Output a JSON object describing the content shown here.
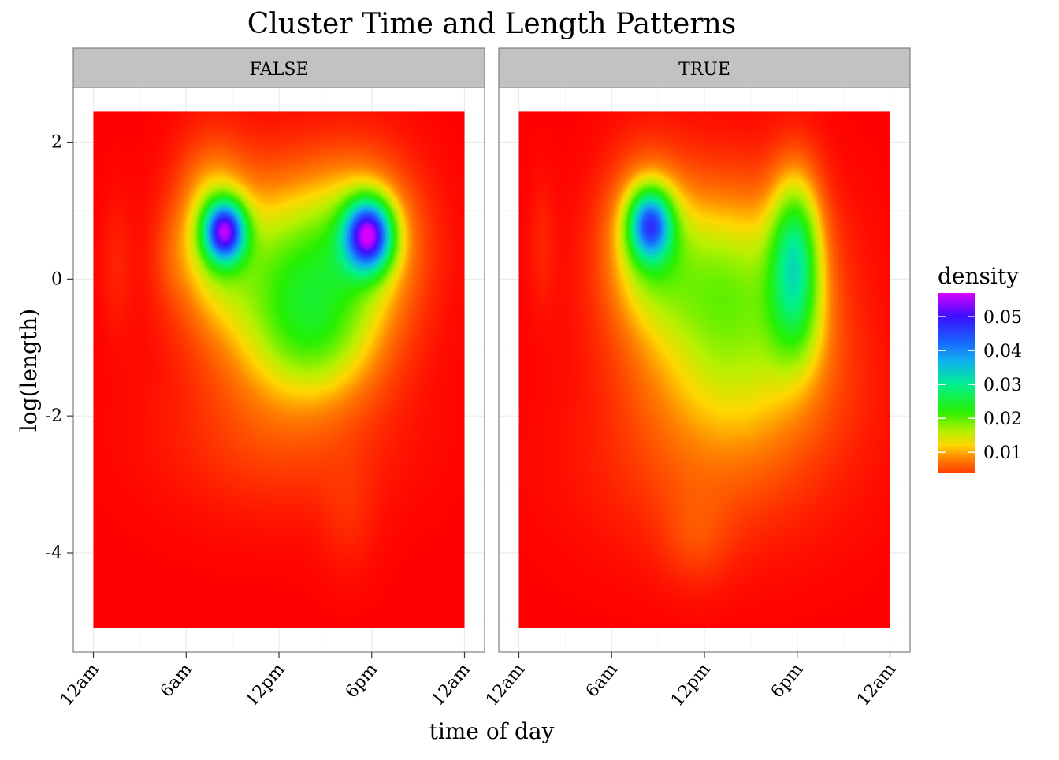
{
  "chart_data": {
    "type": "heatmap",
    "title": "Cluster Time and Length Patterns",
    "xlabel": "time of day",
    "ylabel": "log(length)",
    "facets": [
      "FALSE",
      "TRUE"
    ],
    "x_ticks": [
      {
        "value": 0,
        "label": "12am"
      },
      {
        "value": 6,
        "label": "6am"
      },
      {
        "value": 12,
        "label": "12pm"
      },
      {
        "value": 18,
        "label": "6pm"
      },
      {
        "value": 24,
        "label": "12am"
      }
    ],
    "y_ticks": [
      {
        "value": 2,
        "label": "2"
      },
      {
        "value": 0,
        "label": "0"
      },
      {
        "value": -2,
        "label": "-2"
      },
      {
        "value": -4,
        "label": "-4"
      }
    ],
    "xlim": [
      -1.3,
      25.3
    ],
    "ylim": [
      -5.45,
      2.8
    ],
    "data_extent": {
      "x": [
        0,
        24
      ],
      "y": [
        -5.1,
        2.45
      ]
    },
    "legend": {
      "title": "density",
      "position": "right",
      "range": [
        0.004,
        0.057
      ],
      "breaks": [
        {
          "value": 0.01,
          "label": "0.01"
        },
        {
          "value": 0.02,
          "label": "0.02"
        },
        {
          "value": 0.03,
          "label": "0.03"
        },
        {
          "value": 0.04,
          "label": "0.04"
        },
        {
          "value": 0.05,
          "label": "0.05"
        }
      ]
    },
    "colorscale": [
      {
        "value": 0.0,
        "color": "#ff0000"
      },
      {
        "value": 0.008,
        "color": "#ff8000"
      },
      {
        "value": 0.012,
        "color": "#ffd700"
      },
      {
        "value": 0.016,
        "color": "#b8f000"
      },
      {
        "value": 0.022,
        "color": "#26f000"
      },
      {
        "value": 0.03,
        "color": "#00f090"
      },
      {
        "value": 0.037,
        "color": "#10b0f0"
      },
      {
        "value": 0.043,
        "color": "#1a60ff"
      },
      {
        "value": 0.05,
        "color": "#3a10ff"
      },
      {
        "value": 0.057,
        "color": "#d800ff"
      }
    ],
    "panels": [
      {
        "facet": "FALSE",
        "components": [
          {
            "x": 8.5,
            "y": 0.7,
            "sx": 0.9,
            "sy": 0.3,
            "w": 0.038
          },
          {
            "x": 17.8,
            "y": 0.65,
            "sx": 1.05,
            "sy": 0.35,
            "w": 0.04
          },
          {
            "x": 7.7,
            "y": 0.75,
            "sx": 1.6,
            "sy": 0.8,
            "w": 0.012
          },
          {
            "x": 17.5,
            "y": 0.6,
            "sx": 2.4,
            "sy": 0.8,
            "w": 0.011
          },
          {
            "x": 13.0,
            "y": 0.0,
            "sx": 3.8,
            "sy": 1.0,
            "w": 0.02
          },
          {
            "x": 14.5,
            "y": -1.0,
            "sx": 2.8,
            "sy": 0.6,
            "w": 0.008
          },
          {
            "x": 12.0,
            "y": -2.3,
            "sx": 5.0,
            "sy": 0.8,
            "w": 0.004
          },
          {
            "x": 16.5,
            "y": -3.5,
            "sx": 1.3,
            "sy": 0.6,
            "w": 0.002
          },
          {
            "x": 1.5,
            "y": 0.2,
            "sx": 0.7,
            "sy": 0.7,
            "w": 0.002
          },
          {
            "x": 5.0,
            "y": 0.3,
            "sx": 0.9,
            "sy": 0.5,
            "w": 0.002
          }
        ]
      },
      {
        "facet": "TRUE",
        "components": [
          {
            "x": 8.5,
            "y": 0.8,
            "sx": 0.95,
            "sy": 0.35,
            "w": 0.03
          },
          {
            "x": 17.9,
            "y": 0.4,
            "sx": 1.15,
            "sy": 0.8,
            "w": 0.022
          },
          {
            "x": 18.0,
            "y": -0.7,
            "sx": 1.4,
            "sy": 0.6,
            "w": 0.006
          },
          {
            "x": 8.3,
            "y": 0.6,
            "sx": 1.8,
            "sy": 0.8,
            "w": 0.012
          },
          {
            "x": 13.2,
            "y": -0.1,
            "sx": 4.0,
            "sy": 1.0,
            "w": 0.018
          },
          {
            "x": 14.5,
            "y": -1.6,
            "sx": 4.5,
            "sy": 0.8,
            "w": 0.007
          },
          {
            "x": 12.5,
            "y": -2.8,
            "sx": 5.5,
            "sy": 0.9,
            "w": 0.004
          },
          {
            "x": 11.5,
            "y": -3.8,
            "sx": 1.6,
            "sy": 0.5,
            "w": 0.003
          },
          {
            "x": 1.5,
            "y": 0.5,
            "sx": 0.6,
            "sy": 0.7,
            "w": 0.002
          }
        ]
      }
    ]
  }
}
